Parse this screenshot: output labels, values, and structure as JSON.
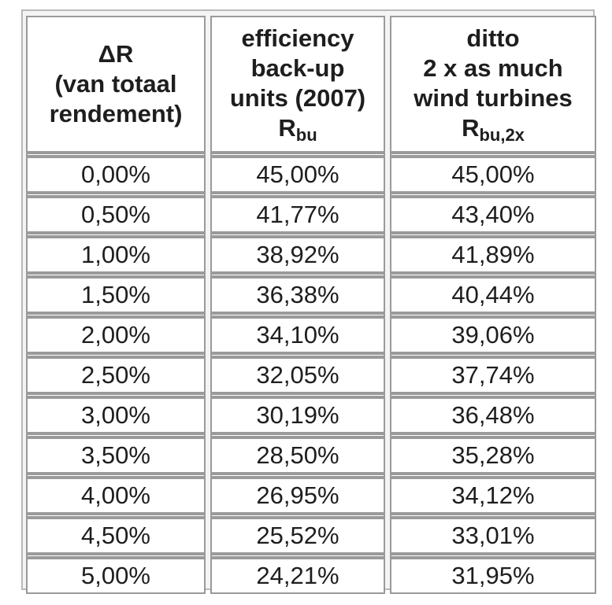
{
  "table": {
    "headers": [
      {
        "lines": [
          "ΔR",
          "(van totaal",
          "rendement)"
        ]
      },
      {
        "lines": [
          "efficiency",
          "back-up",
          "units (2007)"
        ],
        "symbol": "R",
        "subscript": "bu"
      },
      {
        "lines": [
          "ditto",
          "2 x as much",
          "wind turbines"
        ],
        "symbol": "R",
        "subscript": "bu,2x"
      }
    ],
    "rows": [
      [
        "0,00%",
        "45,00%",
        "45,00%"
      ],
      [
        "0,50%",
        "41,77%",
        "43,40%"
      ],
      [
        "1,00%",
        "38,92%",
        "41,89%"
      ],
      [
        "1,50%",
        "36,38%",
        "40,44%"
      ],
      [
        "2,00%",
        "34,10%",
        "39,06%"
      ],
      [
        "2,50%",
        "32,05%",
        "37,74%"
      ],
      [
        "3,00%",
        "30,19%",
        "36,48%"
      ],
      [
        "3,50%",
        "28,50%",
        "35,28%"
      ],
      [
        "4,00%",
        "26,95%",
        "34,12%"
      ],
      [
        "4,50%",
        "25,52%",
        "33,01%"
      ],
      [
        "5,00%",
        "24,21%",
        "31,95%"
      ]
    ]
  }
}
